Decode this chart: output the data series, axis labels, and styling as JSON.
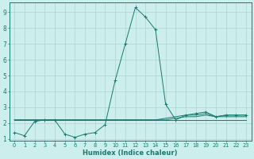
{
  "xlabel": "Humidex (Indice chaleur)",
  "x_values": [
    0,
    1,
    2,
    3,
    4,
    5,
    6,
    7,
    8,
    9,
    10,
    11,
    12,
    13,
    14,
    15,
    16,
    17,
    18,
    19,
    20,
    21,
    22,
    23
  ],
  "line1": [
    1.4,
    1.2,
    2.1,
    2.2,
    2.2,
    1.3,
    1.1,
    1.3,
    1.4,
    1.9,
    4.7,
    7.0,
    9.3,
    8.7,
    7.9,
    3.2,
    2.2,
    2.5,
    2.6,
    2.7,
    2.4,
    2.5,
    2.5,
    2.5
  ],
  "line2": [
    2.2,
    2.2,
    2.2,
    2.2,
    2.2,
    2.2,
    2.2,
    2.2,
    2.2,
    2.2,
    2.2,
    2.2,
    2.2,
    2.2,
    2.2,
    2.2,
    2.2,
    2.2,
    2.2,
    2.2,
    2.2,
    2.2,
    2.2,
    2.2
  ],
  "line3": [
    2.2,
    2.2,
    2.2,
    2.2,
    2.2,
    2.2,
    2.2,
    2.2,
    2.2,
    2.2,
    2.2,
    2.2,
    2.2,
    2.2,
    2.2,
    2.2,
    2.3,
    2.4,
    2.4,
    2.5,
    2.4,
    2.4,
    2.4,
    2.4
  ],
  "line4": [
    2.2,
    2.2,
    2.2,
    2.2,
    2.2,
    2.2,
    2.2,
    2.2,
    2.2,
    2.2,
    2.2,
    2.2,
    2.2,
    2.2,
    2.2,
    2.3,
    2.4,
    2.5,
    2.5,
    2.6,
    2.4,
    2.5,
    2.5,
    2.5
  ],
  "line_color": "#1a7a6e",
  "bg_color": "#cceeed",
  "grid_color": "#aed4d2",
  "ylim": [
    0.9,
    9.6
  ],
  "yticks": [
    1,
    2,
    3,
    4,
    5,
    6,
    7,
    8,
    9
  ],
  "xlim": [
    -0.5,
    23.5
  ],
  "xtick_fontsize": 4.8,
  "ytick_fontsize": 5.5,
  "xlabel_fontsize": 6.0
}
